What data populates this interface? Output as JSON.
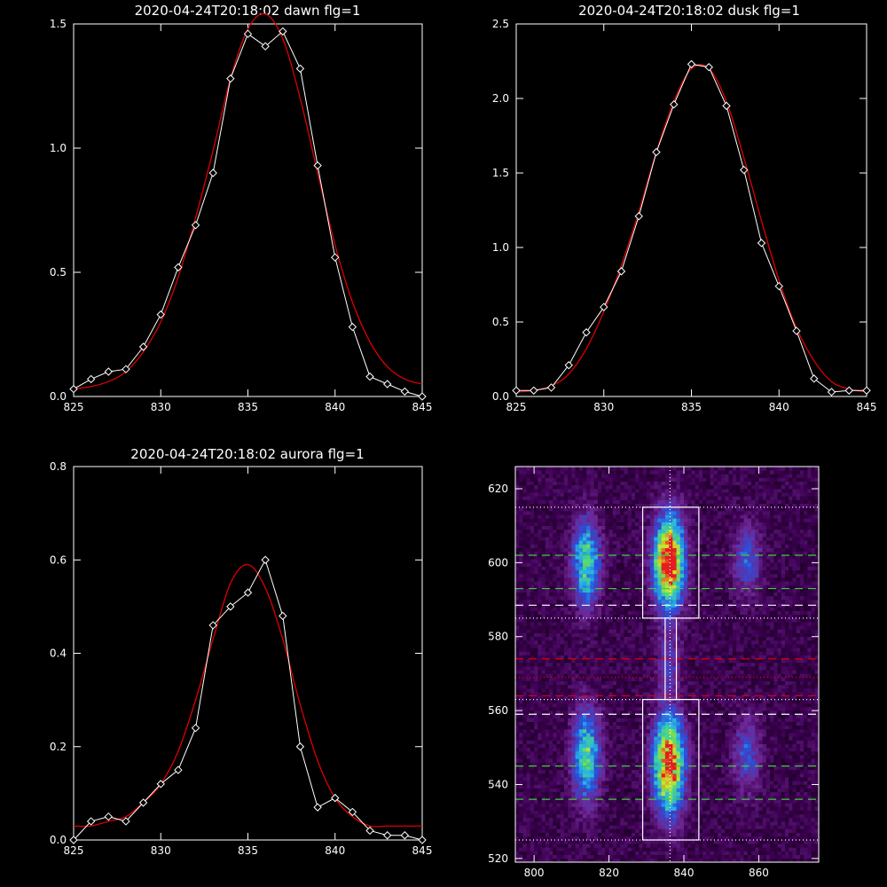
{
  "chart_data": [
    {
      "type": "line",
      "title": "2020-04-24T20:18:02 dawn flg=1",
      "xlim": [
        825,
        845
      ],
      "ylim": [
        0,
        1.5
      ],
      "x_ticks": [
        "825",
        "830",
        "835",
        "840",
        "845"
      ],
      "y_ticks": [
        "0.0",
        "0.5",
        "1.0",
        "1.5"
      ],
      "series": [
        {
          "style": "white line with diamond markers",
          "color": "#ffffff",
          "x": [
            825,
            826,
            827,
            828,
            829,
            830,
            831,
            832,
            833,
            834,
            835,
            836,
            837,
            838,
            839,
            840,
            841,
            842,
            843,
            844,
            845
          ],
          "y": [
            0.03,
            0.07,
            0.1,
            0.11,
            0.2,
            0.33,
            0.52,
            0.69,
            0.9,
            1.28,
            1.46,
            1.41,
            1.47,
            1.32,
            0.93,
            0.56,
            0.28,
            0.08,
            0.05,
            0.02,
            0.0
          ]
        },
        {
          "style": "red fit curve",
          "color": "#dd0000",
          "x": [
            825,
            826,
            827,
            828,
            829,
            830,
            831,
            832,
            833,
            834,
            835,
            836,
            837,
            838,
            839,
            840,
            841,
            842,
            843,
            844,
            845
          ],
          "y": [
            0.03,
            0.04,
            0.06,
            0.1,
            0.18,
            0.3,
            0.48,
            0.72,
            0.99,
            1.28,
            1.48,
            1.54,
            1.44,
            1.2,
            0.9,
            0.61,
            0.38,
            0.22,
            0.12,
            0.07,
            0.05
          ]
        }
      ]
    },
    {
      "type": "line",
      "title": "2020-04-24T20:18:02 dusk flg=1",
      "xlim": [
        825,
        845
      ],
      "ylim": [
        0,
        2.5
      ],
      "x_ticks": [
        "825",
        "830",
        "835",
        "840",
        "845"
      ],
      "y_ticks": [
        "0.0",
        "0.5",
        "1.0",
        "1.5",
        "2.0",
        "2.5"
      ],
      "series": [
        {
          "style": "white line with diamond markers",
          "color": "#ffffff",
          "x": [
            825,
            826,
            827,
            828,
            829,
            830,
            831,
            832,
            833,
            834,
            835,
            836,
            837,
            838,
            839,
            840,
            841,
            842,
            843,
            844,
            845
          ],
          "y": [
            0.04,
            0.04,
            0.06,
            0.21,
            0.43,
            0.6,
            0.84,
            1.21,
            1.64,
            1.96,
            2.23,
            2.21,
            1.95,
            1.52,
            1.03,
            0.74,
            0.44,
            0.12,
            0.03,
            0.04,
            0.04
          ]
        },
        {
          "style": "red fit curve",
          "color": "#dd0000",
          "x": [
            825,
            826,
            827,
            828,
            829,
            830,
            831,
            832,
            833,
            834,
            835,
            836,
            837,
            838,
            839,
            840,
            841,
            842,
            843,
            844,
            845
          ],
          "y": [
            0.03,
            0.04,
            0.07,
            0.15,
            0.32,
            0.57,
            0.88,
            1.24,
            1.64,
            1.98,
            2.2,
            2.2,
            1.98,
            1.6,
            1.18,
            0.78,
            0.46,
            0.24,
            0.1,
            0.05,
            0.03
          ]
        }
      ]
    },
    {
      "type": "line",
      "title": "2020-04-24T20:18:02 aurora flg=1",
      "xlim": [
        825,
        845
      ],
      "ylim": [
        0,
        0.8
      ],
      "x_ticks": [
        "825",
        "830",
        "835",
        "840",
        "845"
      ],
      "y_ticks": [
        "0.0",
        "0.2",
        "0.4",
        "0.6",
        "0.8"
      ],
      "series": [
        {
          "style": "white line with diamond markers",
          "color": "#ffffff",
          "x": [
            825,
            826,
            827,
            828,
            829,
            830,
            831,
            832,
            833,
            834,
            835,
            836,
            837,
            838,
            839,
            840,
            841,
            842,
            843,
            844,
            845
          ],
          "y": [
            0.0,
            0.04,
            0.05,
            0.04,
            0.08,
            0.12,
            0.15,
            0.24,
            0.46,
            0.5,
            0.53,
            0.6,
            0.48,
            0.2,
            0.07,
            0.09,
            0.06,
            0.02,
            0.01,
            0.01,
            0.0
          ]
        },
        {
          "style": "red fit curve",
          "color": "#dd0000",
          "x": [
            825,
            826,
            827,
            828,
            829,
            830,
            831,
            832,
            833,
            834,
            835,
            836,
            837,
            838,
            839,
            840,
            841,
            842,
            843,
            844,
            845
          ],
          "y": [
            0.03,
            0.03,
            0.04,
            0.05,
            0.08,
            0.12,
            0.19,
            0.3,
            0.43,
            0.55,
            0.59,
            0.54,
            0.43,
            0.29,
            0.17,
            0.09,
            0.05,
            0.03,
            0.03,
            0.03,
            0.03
          ]
        }
      ]
    },
    {
      "type": "heatmap",
      "title": "",
      "xlim": [
        795,
        876
      ],
      "ylim": [
        519,
        626
      ],
      "x_ticks": [
        "800",
        "820",
        "840",
        "860"
      ],
      "y_ticks": [
        "520",
        "540",
        "560",
        "580",
        "600",
        "620"
      ],
      "colormap": [
        "#000000",
        "#3c0050",
        "#6e2896",
        "#2850dc",
        "#28b4e6",
        "#50d878",
        "#d2e628",
        "#e61e1e"
      ],
      "emission_blobs": [
        {
          "xc": 836.0,
          "yc": 600.5,
          "sx": 2.8,
          "sy": 8.5,
          "peak": 1.0
        },
        {
          "xc": 836.0,
          "yc": 545.5,
          "sx": 2.8,
          "sy": 9.0,
          "peak": 0.95
        },
        {
          "xc": 814.0,
          "yc": 600.0,
          "sx": 2.6,
          "sy": 8.0,
          "peak": 0.55
        },
        {
          "xc": 814.0,
          "yc": 548.0,
          "sx": 2.6,
          "sy": 8.5,
          "peak": 0.55
        },
        {
          "xc": 857.0,
          "yc": 601.0,
          "sx": 2.5,
          "sy": 6.5,
          "peak": 0.3
        },
        {
          "xc": 857.0,
          "yc": 548.0,
          "sx": 2.5,
          "sy": 7.0,
          "peak": 0.28
        },
        {
          "xc": 836.0,
          "yc": 573.0,
          "sx": 2.2,
          "sy": 6.0,
          "peak": 0.2
        }
      ],
      "boxes": [
        {
          "x": [
            829,
            844
          ],
          "y": [
            585,
            615
          ],
          "color": "#ffffff"
        },
        {
          "x": [
            829,
            844
          ],
          "y": [
            525,
            563
          ],
          "color": "#ffffff"
        },
        {
          "x": [
            835,
            838
          ],
          "y": [
            563,
            585
          ],
          "color": "#ffffff"
        }
      ],
      "hlines": [
        {
          "y": 615,
          "color": "#ffffff",
          "dash": "dotted"
        },
        {
          "y": 602,
          "color": "#3ccc3c",
          "dash": "dashed"
        },
        {
          "y": 593,
          "color": "#3ccc3c",
          "dash": "dashed"
        },
        {
          "y": 588.5,
          "color": "#ffffff",
          "dash": "dashed"
        },
        {
          "y": 585,
          "color": "#ffffff",
          "dash": "dotted"
        },
        {
          "y": 574,
          "color": "#dd0000",
          "dash": "dashed"
        },
        {
          "y": 569,
          "color": "#dd0000",
          "dash": "dotted"
        },
        {
          "y": 564,
          "color": "#dd0000",
          "dash": "dashed"
        },
        {
          "y": 563,
          "color": "#ffffff",
          "dash": "dotted"
        },
        {
          "y": 559,
          "color": "#ffffff",
          "dash": "dashed"
        },
        {
          "y": 545,
          "color": "#3ccc3c",
          "dash": "dashed"
        },
        {
          "y": 536,
          "color": "#3ccc3c",
          "dash": "dashed"
        },
        {
          "y": 525,
          "color": "#ffffff",
          "dash": "dotted"
        }
      ],
      "vlines": [
        {
          "x": 836.3,
          "color": "#ffffff",
          "dash": "dotted"
        }
      ]
    }
  ]
}
